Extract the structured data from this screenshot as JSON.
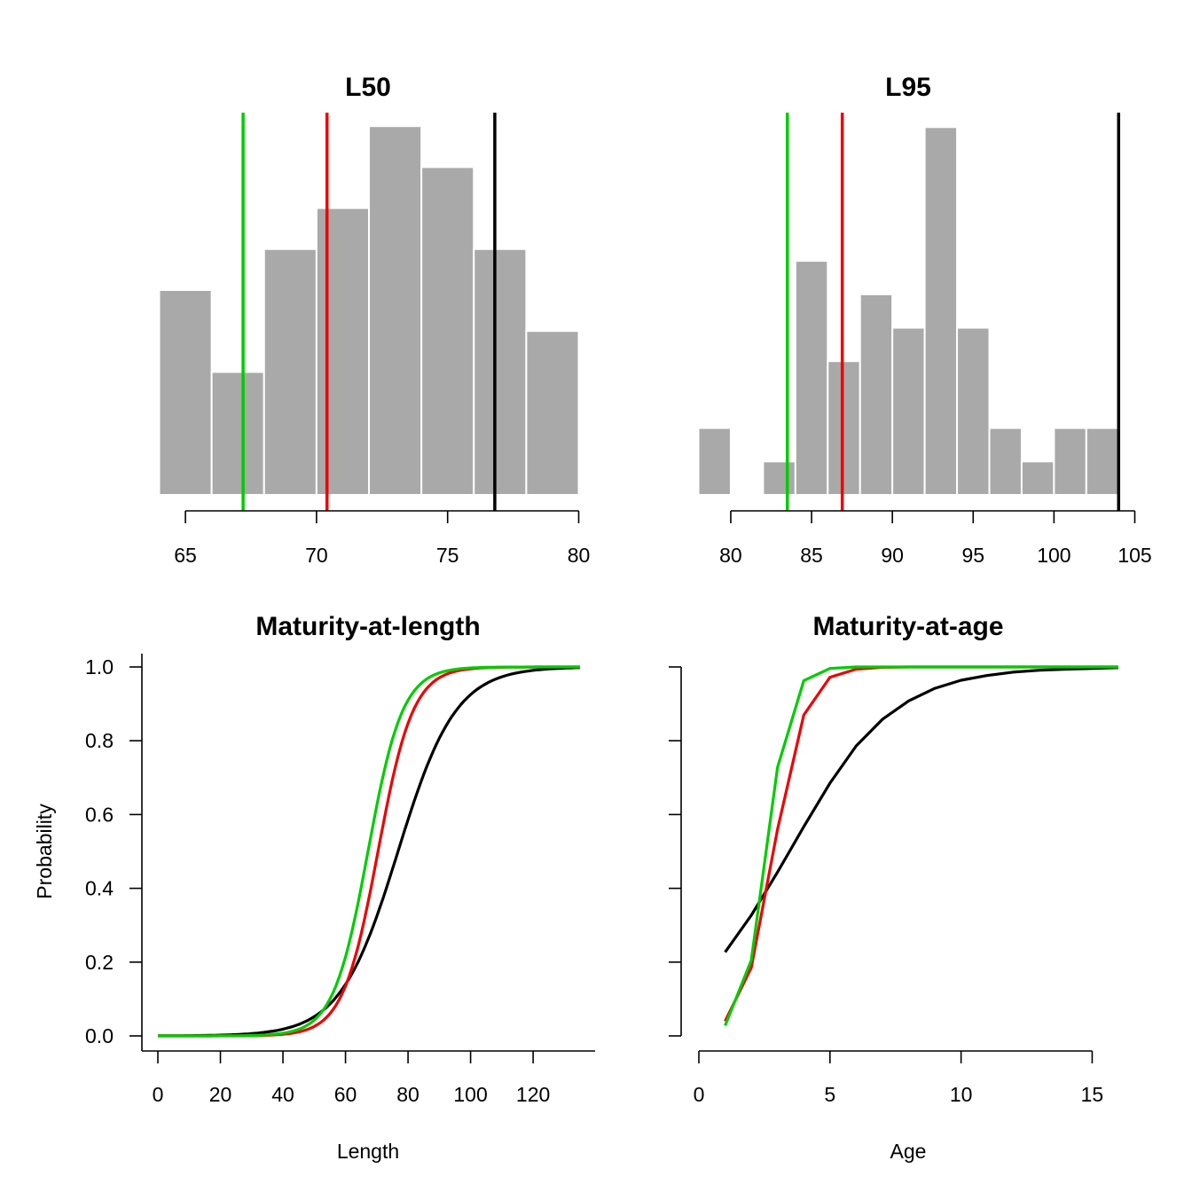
{
  "colors": {
    "black": "#000000",
    "red": "#ee0000",
    "green": "#00cc00",
    "bar": "#a9a9a9"
  },
  "chart_data": [
    {
      "type": "bar",
      "panel": "hist-l50",
      "title": "L50",
      "xlabel": "",
      "ylabel": "",
      "xlim": [
        64,
        80
      ],
      "xticks": [
        65,
        70,
        75,
        80
      ],
      "bin_edges": [
        64,
        66,
        68,
        70,
        72,
        74,
        76,
        78,
        80
      ],
      "counts": [
        5,
        3,
        6,
        7,
        9,
        8,
        6,
        4
      ],
      "vlines": [
        {
          "x": 67.2,
          "color": "#00cc00"
        },
        {
          "x": 70.4,
          "color": "#ee0000"
        },
        {
          "x": 76.8,
          "color": "#000000"
        }
      ]
    },
    {
      "type": "bar",
      "panel": "hist-l95",
      "title": "L95",
      "xlabel": "",
      "ylabel": "",
      "xlim": [
        78,
        105
      ],
      "xticks": [
        80,
        85,
        90,
        95,
        100,
        105
      ],
      "bin_edges": [
        78,
        80,
        82,
        84,
        86,
        88,
        90,
        92,
        94,
        96,
        98,
        100,
        102,
        104
      ],
      "counts": [
        2,
        0,
        1,
        7,
        4,
        6,
        5,
        11,
        5,
        2,
        1,
        2,
        2
      ],
      "vlines": [
        {
          "x": 83.5,
          "color": "#00cc00"
        },
        {
          "x": 86.9,
          "color": "#ee0000"
        },
        {
          "x": 104.0,
          "color": "#000000"
        }
      ]
    },
    {
      "type": "line",
      "panel": "maturity-length",
      "title": "Maturity-at-length",
      "xlabel": "Length",
      "ylabel": "Probability",
      "xlim": [
        0,
        135
      ],
      "ylim": [
        0,
        1
      ],
      "xticks": [
        0,
        20,
        40,
        60,
        80,
        100,
        120
      ],
      "yticks": [
        "0.0",
        "0.2",
        "0.4",
        "0.6",
        "0.8",
        "1.0"
      ],
      "series": [
        {
          "color": "#000000",
          "l50": 76.8,
          "l95": 104.0
        },
        {
          "color": "#ee0000",
          "l50": 70.4,
          "l95": 86.9
        },
        {
          "color": "#00cc00",
          "l50": 67.2,
          "l95": 83.5
        }
      ]
    },
    {
      "type": "line",
      "panel": "maturity-age",
      "title": "Maturity-at-age",
      "xlabel": "Age",
      "ylabel": "",
      "xlim": [
        0,
        16
      ],
      "ylim": [
        0,
        1
      ],
      "xticks": [
        0,
        5,
        10,
        15
      ],
      "yticks": [
        "",
        "",
        "",
        "",
        "",
        ""
      ],
      "x": [
        1,
        2,
        3,
        4,
        5,
        6,
        7,
        8,
        9,
        10,
        11,
        12,
        13,
        14,
        15,
        16
      ],
      "series": [
        {
          "color": "#000000",
          "values": [
            0.227,
            0.327,
            0.444,
            0.567,
            0.685,
            0.786,
            0.858,
            0.908,
            0.942,
            0.964,
            0.977,
            0.986,
            0.991,
            0.994,
            0.996,
            0.998
          ]
        },
        {
          "color": "#ee0000",
          "values": [
            0.04,
            0.185,
            0.56,
            0.87,
            0.972,
            0.994,
            0.999,
            1.0,
            1.0,
            1.0,
            1.0,
            1.0,
            1.0,
            1.0,
            1.0,
            1.0
          ]
        },
        {
          "color": "#00cc00",
          "values": [
            0.028,
            0.205,
            0.728,
            0.963,
            0.996,
            1.0,
            1.0,
            1.0,
            1.0,
            1.0,
            1.0,
            1.0,
            1.0,
            1.0,
            1.0,
            1.0
          ]
        }
      ]
    }
  ]
}
